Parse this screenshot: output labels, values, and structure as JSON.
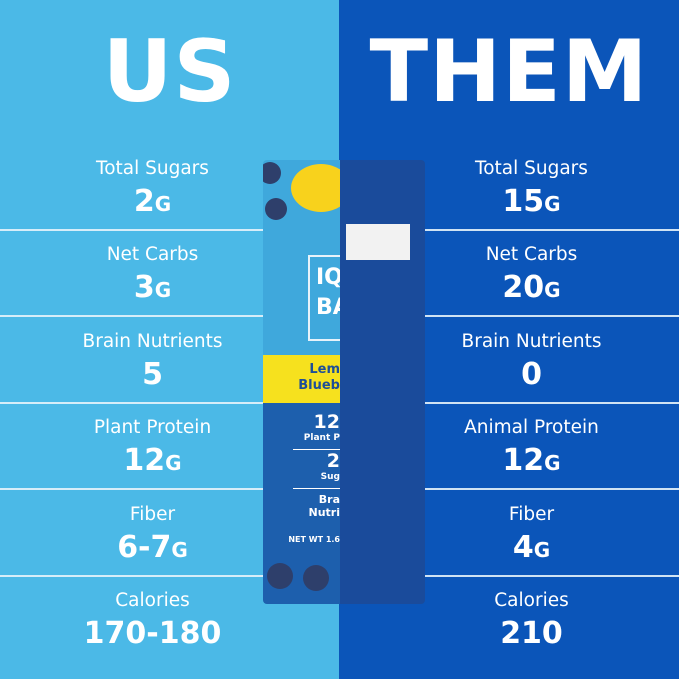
{
  "us": {
    "title": "US",
    "rows": [
      {
        "label": "Total Sugars",
        "value": "2",
        "unit": "G"
      },
      {
        "label": "Net Carbs",
        "value": "3",
        "unit": "G"
      },
      {
        "label": "Brain Nutrients",
        "value": "5",
        "unit": ""
      },
      {
        "label": "Plant Protein",
        "value": "12",
        "unit": "G"
      },
      {
        "label": "Fiber",
        "value": "6-7",
        "unit": "G"
      },
      {
        "label": "Calories",
        "value": "170-180",
        "unit": ""
      }
    ]
  },
  "them": {
    "title": "THEM",
    "rows": [
      {
        "label": "Total Sugars",
        "value": "15",
        "unit": "G"
      },
      {
        "label": "Net Carbs",
        "value": "20",
        "unit": "G"
      },
      {
        "label": "Brain Nutrients",
        "value": "0",
        "unit": ""
      },
      {
        "label": "Animal Protein",
        "value": "12",
        "unit": "G"
      },
      {
        "label": "Fiber",
        "value": "4",
        "unit": "G"
      },
      {
        "label": "Calories",
        "value": "210",
        "unit": ""
      }
    ]
  },
  "product": {
    "logo": "IQ BAR",
    "flavor_line1": "Lem",
    "flavor_line2": "Blueb",
    "protein": "12",
    "protein_label": "Plant P",
    "sugar": "2",
    "sugar_label": "Sug",
    "brain1": "Bra",
    "brain2": "Nutri",
    "netwt": "NET WT 1.6"
  },
  "colors": {
    "us_bg": "#4bb9e7",
    "them_bg": "#0b55b9"
  }
}
